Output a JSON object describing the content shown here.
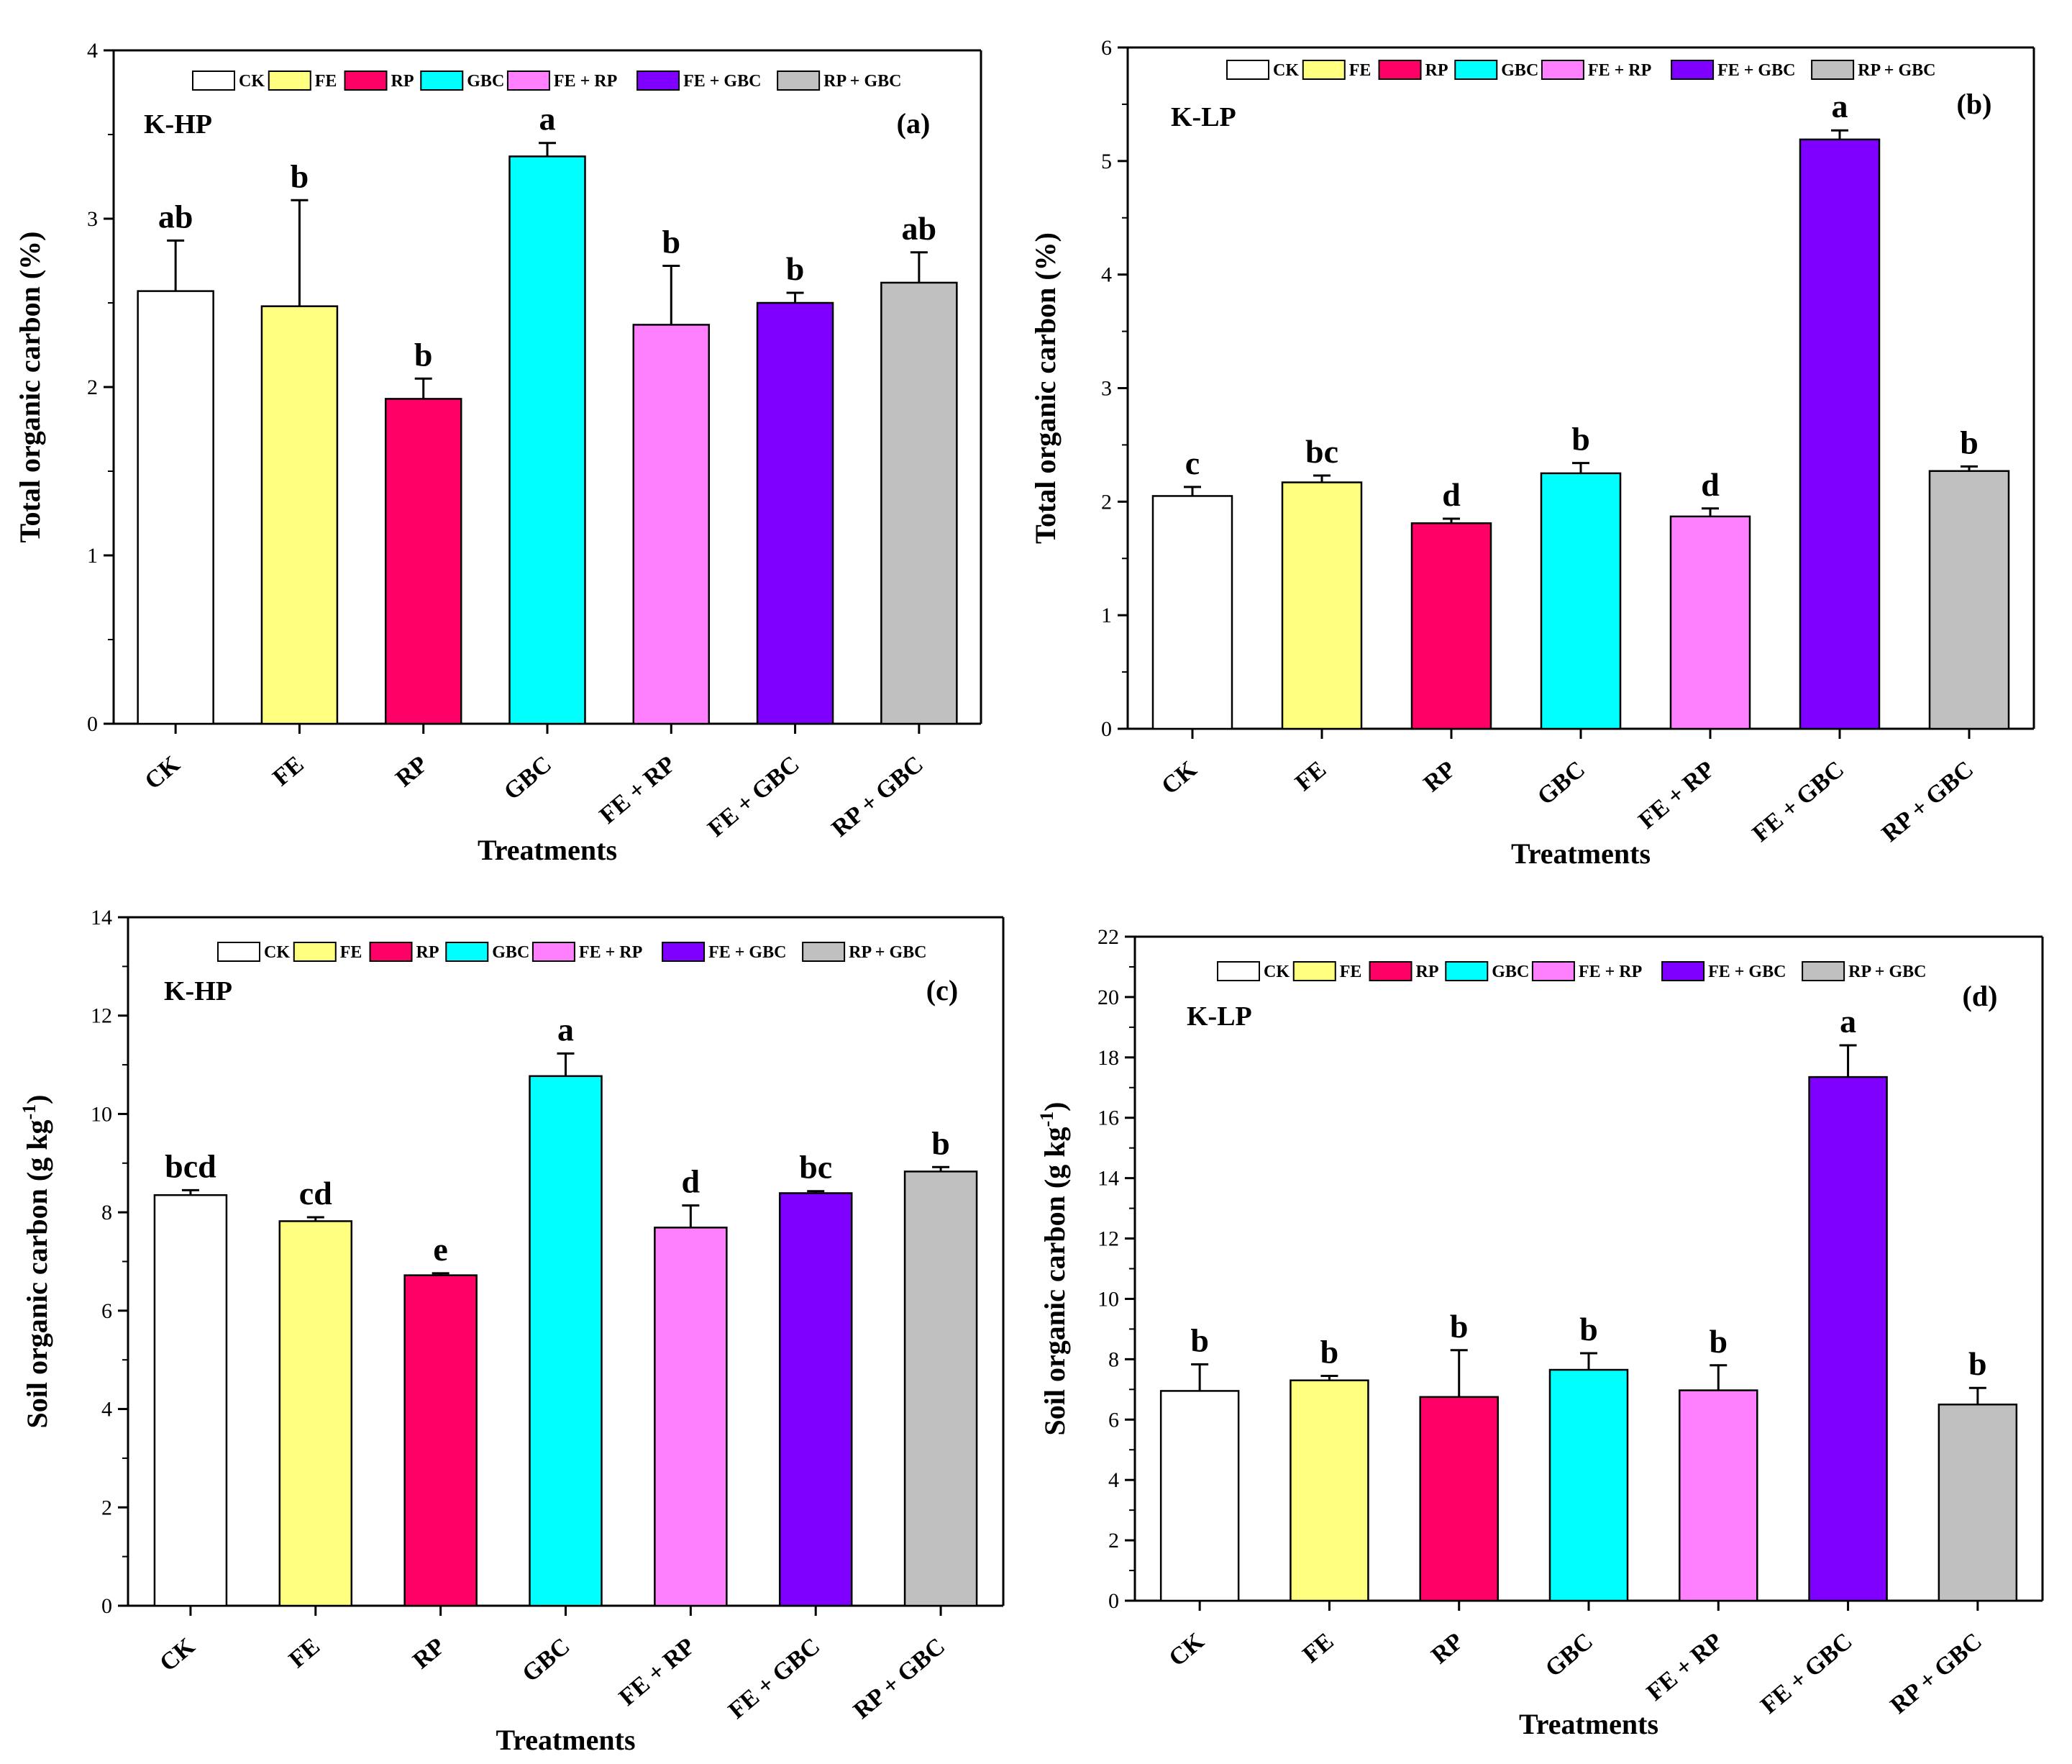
{
  "chart_data": [
    {
      "type": "bar",
      "panel": "(a)",
      "site": "K-HP",
      "xlabel": "Treatments",
      "ylabel": "Total organic carbon (%)",
      "ylabel_sup": "",
      "ylabel_tail": "",
      "ylim": [
        0,
        4
      ],
      "ytick_step": 1,
      "yticks": [
        "0",
        "1",
        "2",
        "3",
        "4"
      ],
      "categories": [
        "CK",
        "FE",
        "RP",
        "GBC",
        "FE + RP",
        "FE + GBC",
        "RP + GBC"
      ],
      "values": [
        2.57,
        2.48,
        1.93,
        3.37,
        2.37,
        2.5,
        2.62
      ],
      "errors": [
        0.3,
        0.63,
        0.12,
        0.08,
        0.35,
        0.06,
        0.18
      ],
      "letters": [
        "ab",
        "b",
        "b",
        "a",
        "b",
        "b",
        "ab"
      ]
    },
    {
      "type": "bar",
      "panel": "(b)",
      "site": "K-LP",
      "xlabel": "Treatments",
      "ylabel": "Total organic carbon (%)",
      "ylabel_sup": "",
      "ylabel_tail": "",
      "ylim": [
        0,
        6
      ],
      "ytick_step": 1,
      "yticks": [
        "0",
        "1",
        "2",
        "3",
        "4",
        "5",
        "6"
      ],
      "categories": [
        "CK",
        "FE",
        "RP",
        "GBC",
        "FE + RP",
        "FE + GBC",
        "RP + GBC"
      ],
      "values": [
        2.05,
        2.17,
        1.81,
        2.25,
        1.87,
        5.19,
        2.27
      ],
      "errors": [
        0.08,
        0.06,
        0.04,
        0.09,
        0.07,
        0.08,
        0.04
      ],
      "letters": [
        "c",
        "bc",
        "d",
        "b",
        "d",
        "a",
        "b"
      ]
    },
    {
      "type": "bar",
      "panel": "(c)",
      "site": "K-HP",
      "xlabel": "Treatments",
      "ylabel": "Soil organic carbon (g kg",
      "ylabel_sup": "-1",
      "ylabel_tail": ")",
      "ylim": [
        0,
        14
      ],
      "ytick_step": 2,
      "yticks": [
        "0",
        "2",
        "4",
        "6",
        "8",
        "10",
        "12",
        "14"
      ],
      "categories": [
        "CK",
        "FE",
        "RP",
        "GBC",
        "FE + RP",
        "FE + GBC",
        "RP + GBC"
      ],
      "values": [
        8.35,
        7.82,
        6.72,
        10.77,
        7.69,
        8.39,
        8.83
      ],
      "errors": [
        0.1,
        0.08,
        0.04,
        0.46,
        0.45,
        0.04,
        0.09
      ],
      "letters": [
        "bcd",
        "cd",
        "e",
        "a",
        "d",
        "bc",
        "b"
      ]
    },
    {
      "type": "bar",
      "panel": "(d)",
      "site": "K-LP",
      "xlabel": "Treatments",
      "ylabel": "Soil organic carbon (g kg",
      "ylabel_sup": "-1",
      "ylabel_tail": ")",
      "ylim": [
        0,
        22
      ],
      "ytick_step": 2,
      "yticks": [
        "0",
        "2",
        "4",
        "6",
        "8",
        "10",
        "12",
        "14",
        "16",
        "18",
        "20",
        "22"
      ],
      "categories": [
        "CK",
        "FE",
        "RP",
        "GBC",
        "FE + RP",
        "FE + GBC",
        "RP + GBC"
      ],
      "values": [
        6.95,
        7.3,
        6.75,
        7.65,
        6.97,
        17.35,
        6.5
      ],
      "errors": [
        0.88,
        0.15,
        1.55,
        0.55,
        0.83,
        1.05,
        0.55
      ],
      "letters": [
        "b",
        "b",
        "b",
        "b",
        "b",
        "a",
        "b"
      ]
    }
  ],
  "legend": [
    "CK",
    "FE",
    "RP",
    "GBC",
    "FE + RP",
    "FE + GBC",
    "RP + GBC"
  ],
  "colors": [
    "#ffffff",
    "#ffff80",
    "#ff0066",
    "#00ffff",
    "#ff80ff",
    "#8000ff",
    "#c0c0c0"
  ]
}
